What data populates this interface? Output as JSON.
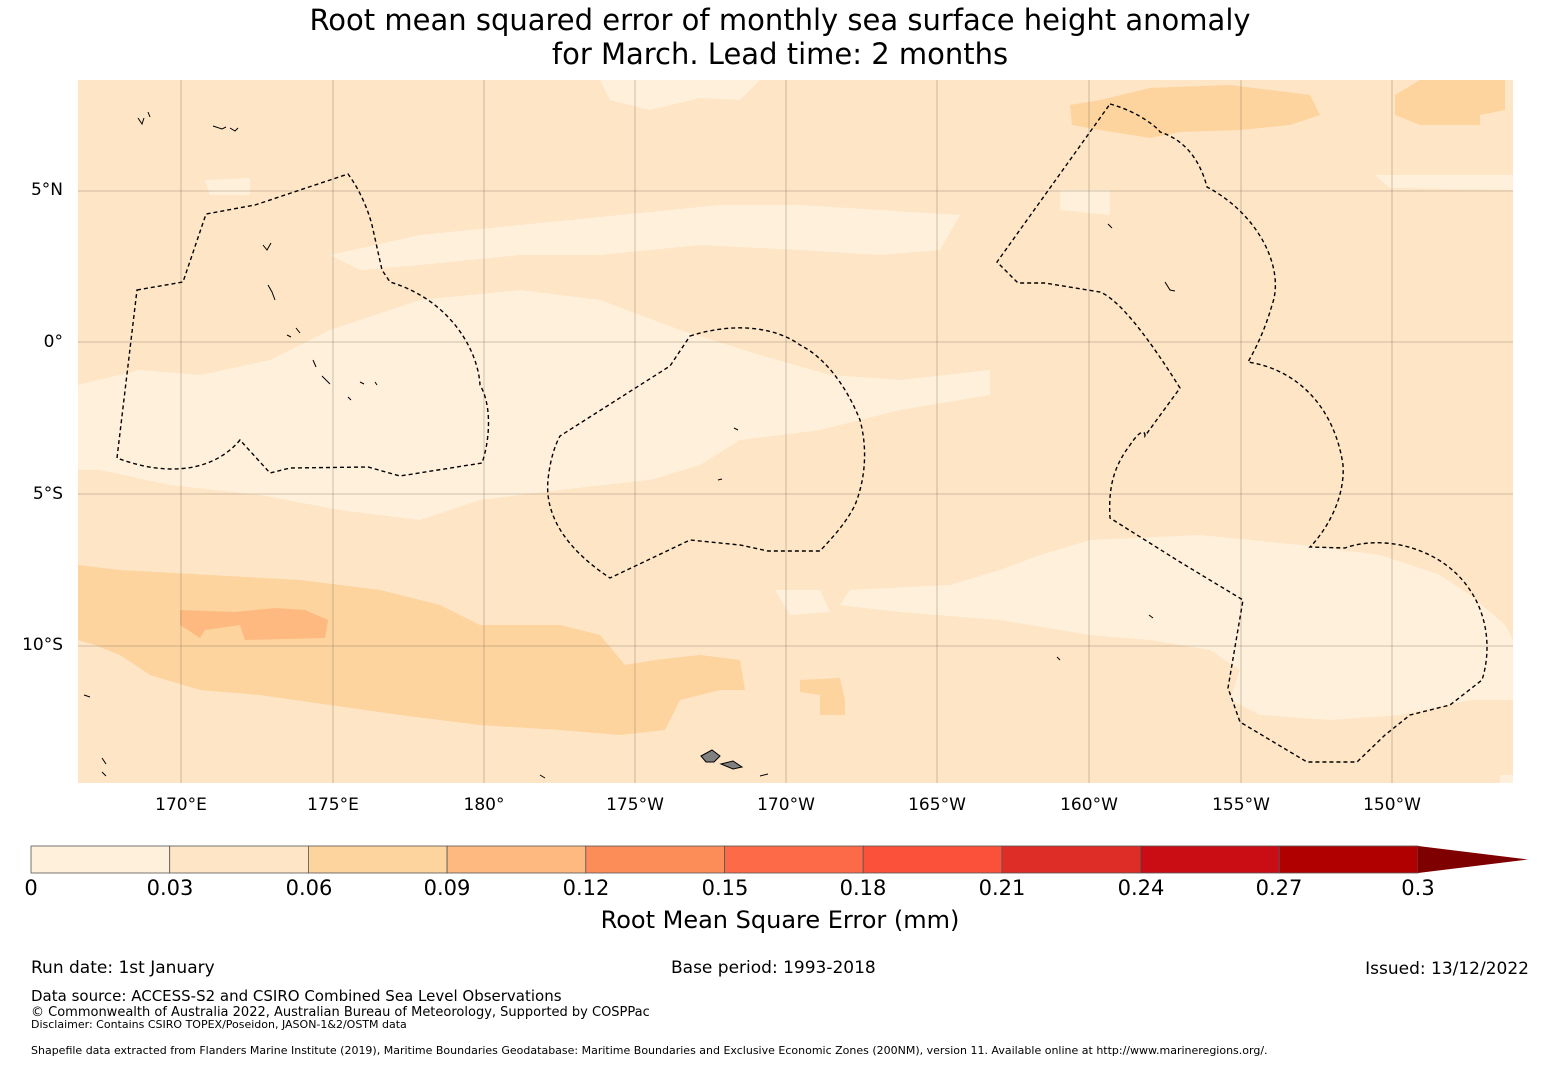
{
  "title_line1": "Root mean squared error of monthly sea surface height anomaly",
  "title_line2": "for March. Lead time: 2 months",
  "lat_labels": [
    "5°N",
    "0°",
    "5°S",
    "10°S"
  ],
  "lon_labels": [
    "170°E",
    "175°E",
    "180°",
    "175°W",
    "170°W",
    "165°W",
    "160°W",
    "155°W",
    "150°W"
  ],
  "colorbar": {
    "title": "Root Mean Square Error (mm)",
    "ticks": [
      "0",
      "0.03",
      "0.06",
      "0.09",
      "0.12",
      "0.15",
      "0.18",
      "0.21",
      "0.24",
      "0.27",
      "0.3"
    ],
    "colors": [
      "#fff0dc",
      "#fee5c6",
      "#fdd39e",
      "#fdb97f",
      "#fc8d59",
      "#fc6a48",
      "#fb5039",
      "#de2d26",
      "#ca0c15",
      "#b00000",
      "#7f0000"
    ]
  },
  "field_colors": {
    "lightest": "#fff0dc",
    "light": "#fee5c6",
    "medium": "#fdd39e",
    "dark": "#fdb97f"
  },
  "footer": {
    "run_date": "Run date: 1st January",
    "base_period": "Base period: 1993-2018",
    "issued": "Issued: 13/12/2022",
    "data_source": "Data source: ACCESS-S2 and CSIRO Combined Sea Level Observations",
    "copyright": "© Commonwealth of Australia 2022, Australian Bureau of Meteorology, Supported by COSPPac",
    "disclaimer": "Disclaimer: Contains CSIRO TOPEX/Poseidon, JASON-1&2/OSTM data",
    "shapefile": "Shapefile data extracted from Flanders Marine Institute (2019), Maritime Boundaries Geodatabase: Maritime Boundaries and Exclusive Economic Zones (200NM), version 11. Available online at http://www.marineregions.org/."
  }
}
